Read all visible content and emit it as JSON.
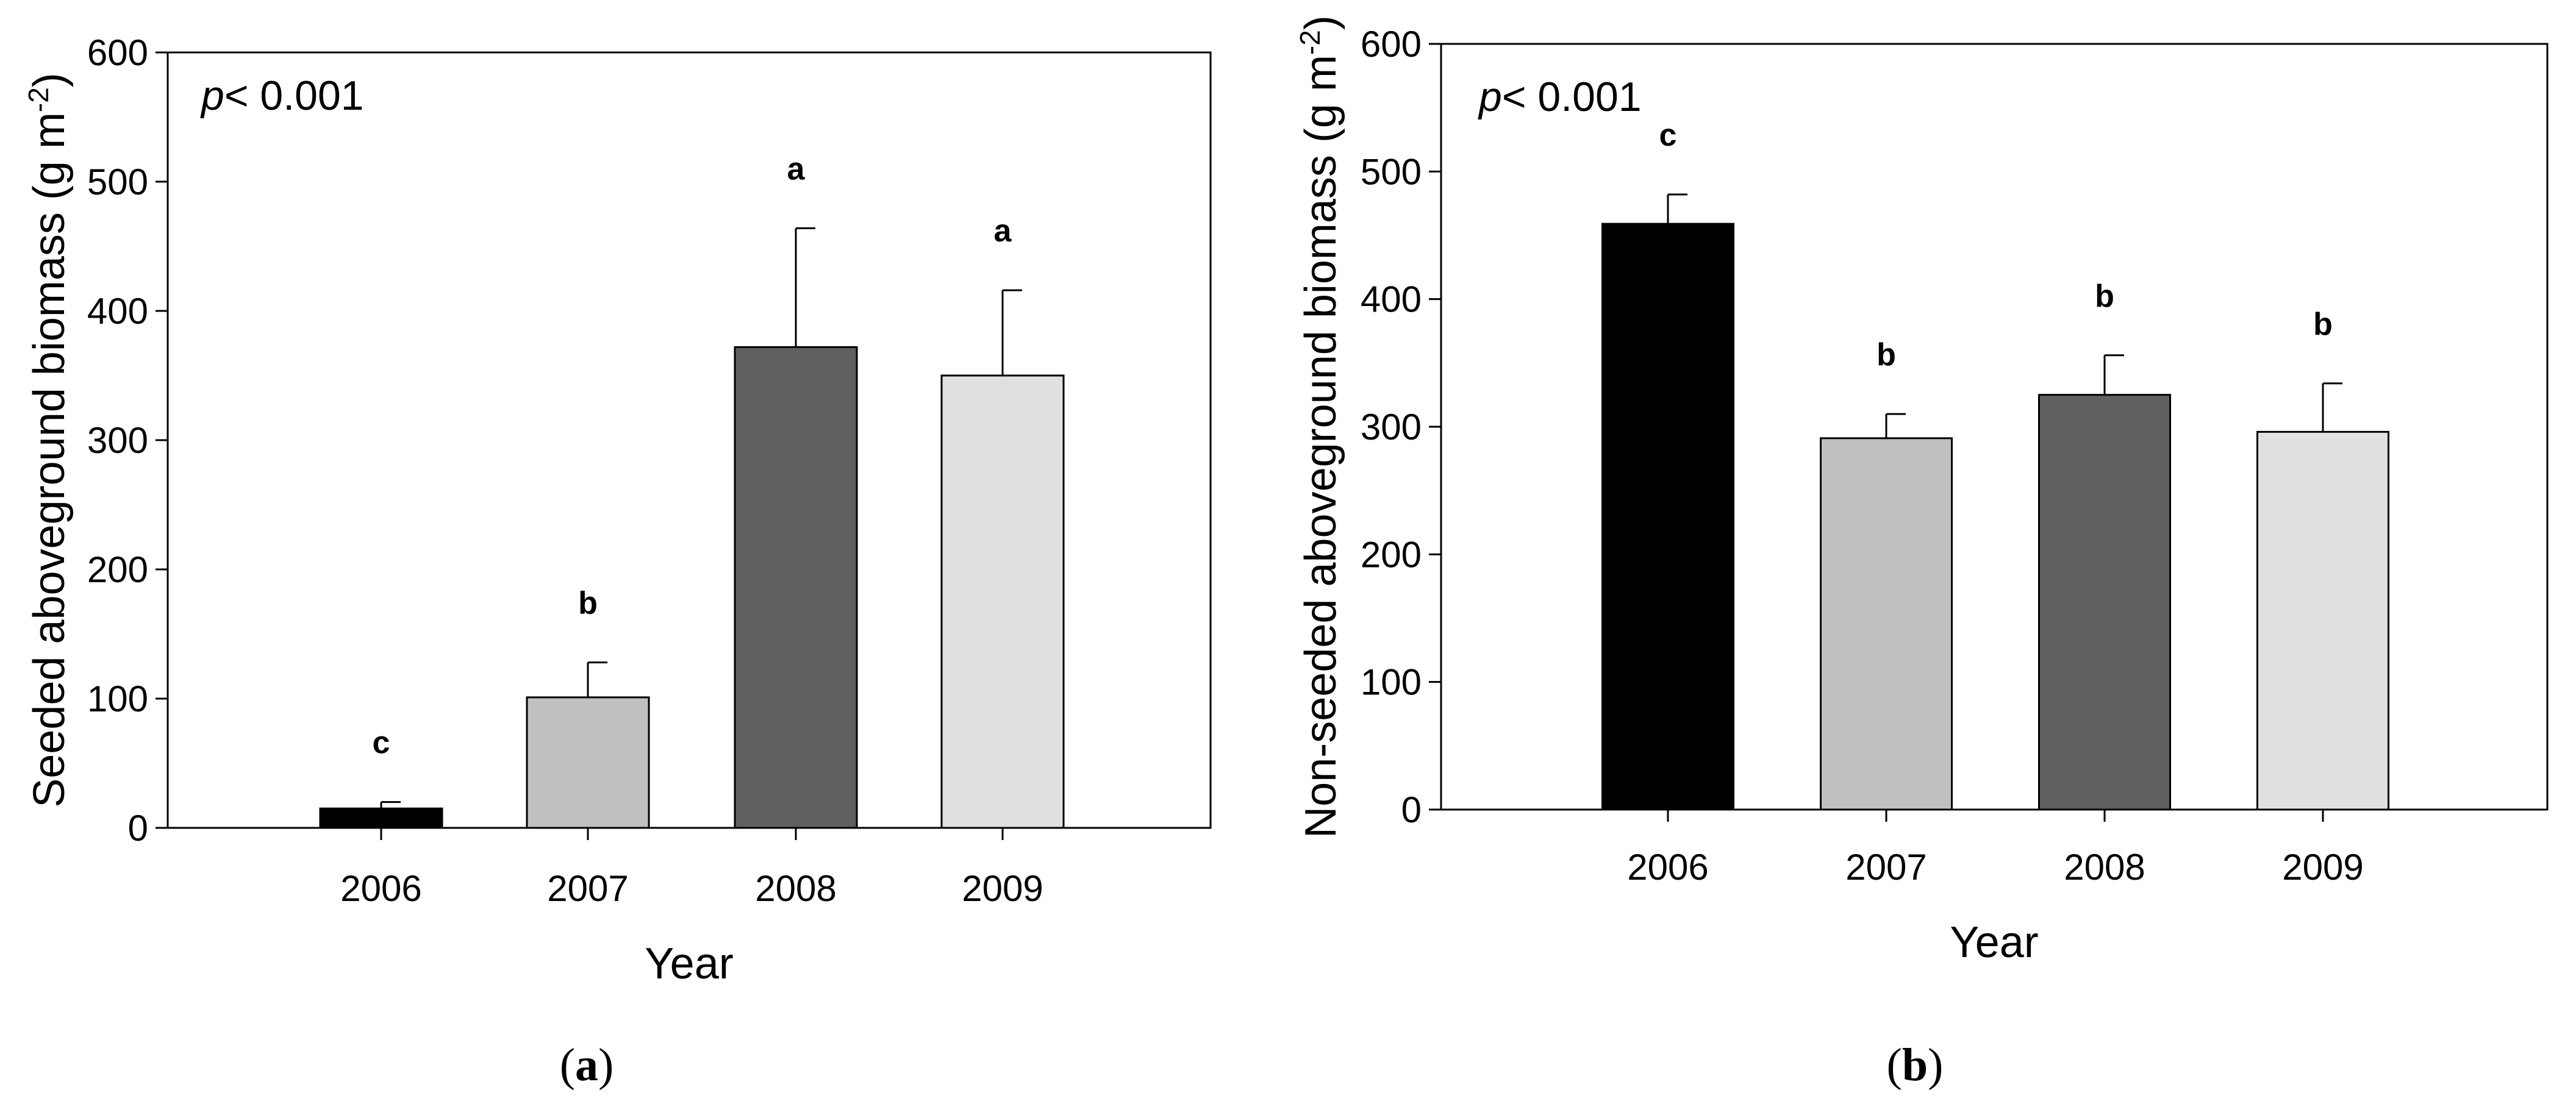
{
  "chart_data": [
    {
      "type": "bar",
      "panel_label": "a",
      "title": "",
      "xlabel": "Year",
      "ylabel": "Seeded aboveground biomass (g m-2)",
      "ylabel_main": "Seeded aboveground biomass (g m",
      "ylabel_sup": "-2",
      "ylabel_close": ")",
      "pvalue_italic": "p",
      "pvalue_rest": "< 0.001",
      "ylim": [
        0,
        600
      ],
      "yticks": [
        "0",
        "100",
        "200",
        "300",
        "400",
        "500",
        "600"
      ],
      "categories": [
        "2006",
        "2007",
        "2008",
        "2009"
      ],
      "values": [
        15,
        101,
        372,
        350
      ],
      "errors": [
        5,
        27,
        92,
        66
      ],
      "letters": [
        "c",
        "b",
        "a",
        "a"
      ],
      "colors": [
        "#000000",
        "#c0c0c0",
        "#606060",
        "#e0e0e0"
      ]
    },
    {
      "type": "bar",
      "panel_label": "b",
      "title": "",
      "xlabel": "Year",
      "ylabel": "Non-seeded aboveground biomass (g m-2)",
      "ylabel_main": "Non-seeded aboveground biomass (g m",
      "ylabel_sup": "-2",
      "ylabel_close": ")",
      "pvalue_italic": "p",
      "pvalue_rest": "< 0.001",
      "ylim": [
        0,
        600
      ],
      "yticks": [
        "0",
        "100",
        "200",
        "300",
        "400",
        "500",
        "600"
      ],
      "categories": [
        "2006",
        "2007",
        "2008",
        "2009"
      ],
      "values": [
        459,
        291,
        325,
        296
      ],
      "errors": [
        23,
        19,
        31,
        38
      ],
      "letters": [
        "c",
        "b",
        "b",
        "b"
      ],
      "colors": [
        "#000000",
        "#c0c0c0",
        "#606060",
        "#e0e0e0"
      ]
    }
  ],
  "captions": {
    "a": "a",
    "b": "b"
  }
}
